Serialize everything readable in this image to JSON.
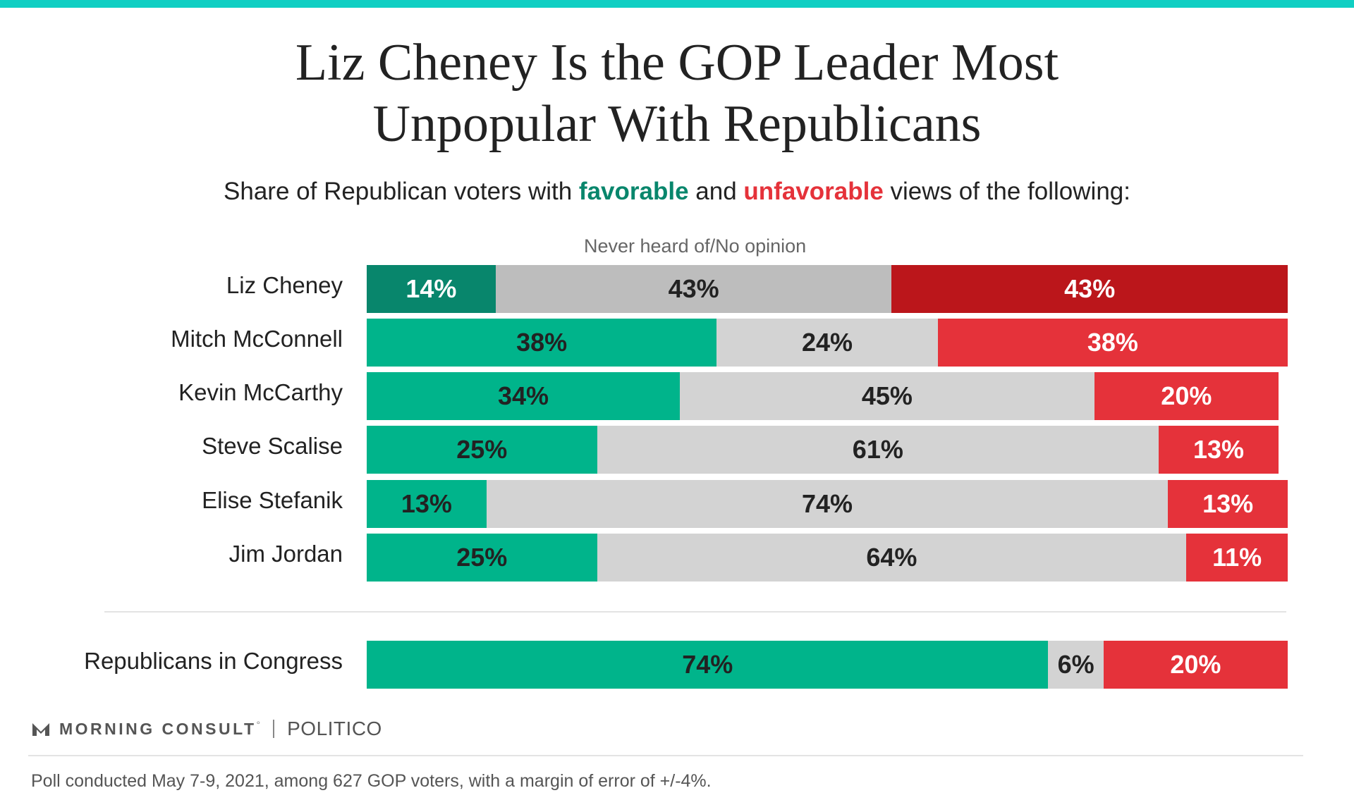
{
  "colors": {
    "top_bar": "#10cfc3",
    "favorable": "#00b48b",
    "favorable_highlight": "#08866c",
    "neutral": "#d3d3d3",
    "neutral_highlight": "#bdbdbd",
    "unfavorable": "#e5323a",
    "unfavorable_highlight": "#bb161b"
  },
  "chart_data": {
    "type": "bar",
    "orientation": "horizontal",
    "stacked": true,
    "title": "Liz Cheney Is the GOP Leader Most Unpopular With Republicans",
    "title_lines": [
      "Liz Cheney Is the GOP Leader Most",
      "Unpopular With Republicans"
    ],
    "subtitle": {
      "before": "Share of Republican voters with ",
      "favorable_word": "favorable",
      "middle": " and ",
      "unfavorable_word": "unfavorable",
      "after": " views of the following:"
    },
    "neutral_column_label": "Never heard of/No opinion",
    "highlighted_category": "Liz Cheney",
    "xlim": [
      0,
      100
    ],
    "categories": [
      "Liz Cheney",
      "Mitch McConnell",
      "Kevin McCarthy",
      "Steve Scalise",
      "Elise Stefanik",
      "Jim Jordan",
      "Republicans in Congress"
    ],
    "series": [
      {
        "name": "favorable",
        "values": [
          14,
          38,
          34,
          25,
          13,
          25,
          74
        ]
      },
      {
        "name": "Never heard of/No opinion",
        "values": [
          43,
          24,
          45,
          61,
          74,
          64,
          6
        ]
      },
      {
        "name": "unfavorable",
        "values": [
          43,
          38,
          20,
          13,
          13,
          11,
          20
        ]
      }
    ],
    "value_labels": [
      [
        "14%",
        "43%",
        "43%"
      ],
      [
        "38%",
        "24%",
        "38%"
      ],
      [
        "34%",
        "45%",
        "20%"
      ],
      [
        "25%",
        "61%",
        "13%"
      ],
      [
        "13%",
        "74%",
        "13%"
      ],
      [
        "25%",
        "64%",
        "11%"
      ],
      [
        "74%",
        "6%",
        "20%"
      ]
    ]
  },
  "footer": {
    "logo_morning_consult": "MORNING CONSULT",
    "logo_trademark": "°",
    "logo_politico": "POLITICO",
    "note": "Poll conducted May 7-9, 2021, among 627 GOP voters, with a margin of error of +/-4%."
  }
}
